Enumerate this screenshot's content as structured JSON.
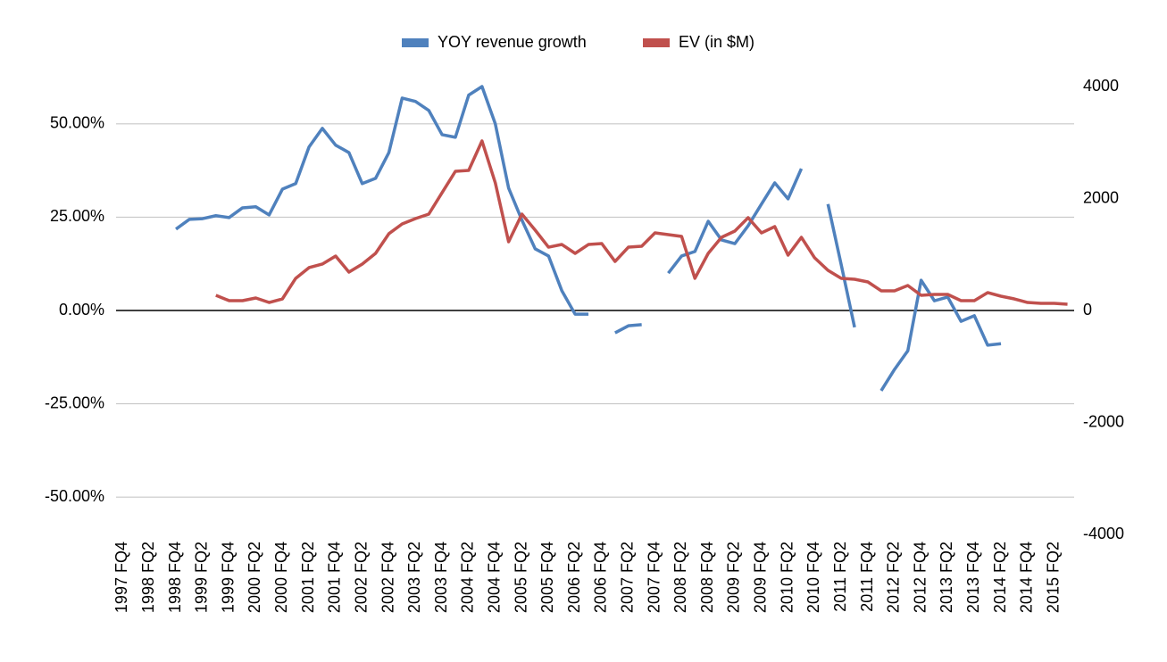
{
  "chart_data": {
    "type": "line",
    "categories": [
      "1997 FQ4",
      null,
      "1998 FQ2",
      null,
      "1998 FQ4",
      null,
      "1999 FQ2",
      null,
      "1999 FQ4",
      null,
      "2000 FQ2",
      null,
      "2000 FQ4",
      null,
      "2001 FQ2",
      null,
      "2001 FQ4",
      null,
      "2002 FQ2",
      null,
      "2002 FQ4",
      null,
      "2003 FQ2",
      null,
      "2003 FQ4",
      null,
      "2004 FQ2",
      null,
      "2004 FQ4",
      null,
      "2005 FQ2",
      null,
      "2005 FQ4",
      null,
      "2006 FQ2",
      null,
      "2006 FQ4",
      null,
      "2007 FQ2",
      null,
      "2007 FQ4",
      null,
      "2008 FQ2",
      null,
      "2008 FQ4",
      null,
      "2009 FQ2",
      null,
      "2009 FQ4",
      null,
      "2010 FQ2",
      null,
      "2010 FQ4",
      null,
      "2011 FQ2",
      null,
      "2011 FQ4",
      null,
      "2012 FQ2",
      null,
      "2012 FQ4",
      null,
      "2013 FQ2",
      null,
      "2013 FQ4",
      null,
      "2014 FQ2",
      null,
      "2014 FQ4",
      null,
      "2015 FQ2",
      null
    ],
    "series": [
      {
        "name": "YOY revenue growth",
        "color": "#4f81bd",
        "axis": "y",
        "values": [
          null,
          null,
          null,
          null,
          21.8,
          24.4,
          24.6,
          25.4,
          24.9,
          27.5,
          27.8,
          25.6,
          32.5,
          34.0,
          43.8,
          48.8,
          44.3,
          42.3,
          34.0,
          35.4,
          42.3,
          56.9,
          56.0,
          53.6,
          47.1,
          46.4,
          57.7,
          60,
          50.0,
          32.8,
          24.2,
          16.5,
          14.6,
          5.3,
          -1.0,
          -1.0,
          null,
          -6.0,
          -4.1,
          -3.8,
          null,
          10.0,
          14.6,
          15.8,
          23.9,
          18.9,
          17.9,
          22.7,
          28.5,
          34.2,
          29.9,
          38.0,
          null,
          28.5,
          12.2,
          -4.5,
          null,
          -21.5,
          -15.8,
          -10.8,
          8.1,
          2.6,
          3.6,
          -2.9,
          -1.4,
          -9.3,
          -8.9,
          null,
          null,
          null,
          null,
          null
        ]
      },
      {
        "name": "EV (in $M)",
        "color": "#c0504d",
        "axis": "y2",
        "values": [
          null,
          null,
          null,
          null,
          null,
          null,
          null,
          271,
          175,
          175,
          223,
          143,
          207,
          574,
          765,
          829,
          972,
          685,
          829,
          1020,
          1371,
          1546,
          1641,
          1721,
          2104,
          2486,
          2502,
          3028,
          2279,
          1227,
          1721,
          1434,
          1131,
          1179,
          1020,
          1179,
          1195,
          876,
          1131,
          1147,
          1386,
          1355,
          1323,
          574,
          1020,
          1307,
          1418,
          1657,
          1386,
          1498,
          988,
          1307,
          940,
          717,
          574,
          558,
          510,
          351,
          351,
          446,
          271,
          287,
          287,
          175,
          175,
          319,
          255,
          207,
          143,
          127,
          127,
          112
        ]
      }
    ],
    "ylim": [
      -60,
      60
    ],
    "yticks": [
      {
        "value": 50,
        "label": "50.00%"
      },
      {
        "value": 25,
        "label": "25.00%"
      },
      {
        "value": 0,
        "label": "0.00%"
      },
      {
        "value": -25,
        "label": "-25.00%"
      },
      {
        "value": -50,
        "label": "-50.00%"
      }
    ],
    "y2lim": [
      -4000,
      4000
    ],
    "y2ticks": [
      4000,
      2000,
      0,
      -2000,
      -4000
    ],
    "grid": true,
    "legend": "top"
  }
}
